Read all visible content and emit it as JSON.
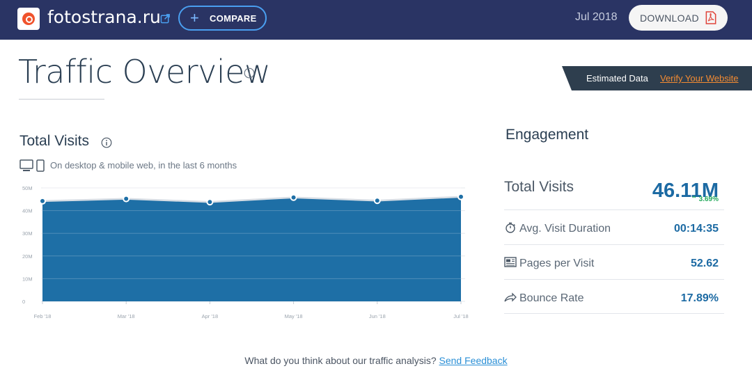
{
  "header": {
    "site_name": "fotostrana.ru",
    "compare_label": "COMPARE",
    "date": "Jul 2018",
    "download_label": "DOWNLOAD"
  },
  "page": {
    "title": "Traffic Overview",
    "estimated_label": "Estimated Data",
    "verify_link": "Verify Your Website"
  },
  "total_visits": {
    "title": "Total Visits",
    "subtitle": "On desktop & mobile web, in the last 6 months"
  },
  "chart_data": {
    "type": "area",
    "categories": [
      "Feb '18",
      "Mar '18",
      "Apr '18",
      "May '18",
      "Jun '18",
      "Jul '18"
    ],
    "values": [
      44.2,
      45.2,
      43.8,
      45.8,
      44.4,
      46.1
    ],
    "ytick_labels": [
      "0",
      "10M",
      "20M",
      "30M",
      "40M",
      "50M"
    ],
    "ylim": [
      0,
      50
    ],
    "grid": true,
    "color": "#1e6fa6"
  },
  "engagement": {
    "title": "Engagement",
    "total_visits_label": "Total Visits",
    "total_visits_value": "46.11M",
    "total_visits_delta": "3.69%",
    "avg_duration_label": "Avg. Visit Duration",
    "avg_duration_value": "00:14:35",
    "pages_per_visit_label": "Pages per Visit",
    "pages_per_visit_value": "52.62",
    "bounce_rate_label": "Bounce Rate",
    "bounce_rate_value": "17.89%"
  },
  "feedback": {
    "question": "What do you think about our traffic analysis?",
    "link": "Send Feedback"
  },
  "colors": {
    "header_bg": "#2a3464",
    "accent": "#1c6aa3",
    "positive": "#23a95b",
    "link": "#2a8fd6",
    "warning_link": "#f58c32"
  }
}
